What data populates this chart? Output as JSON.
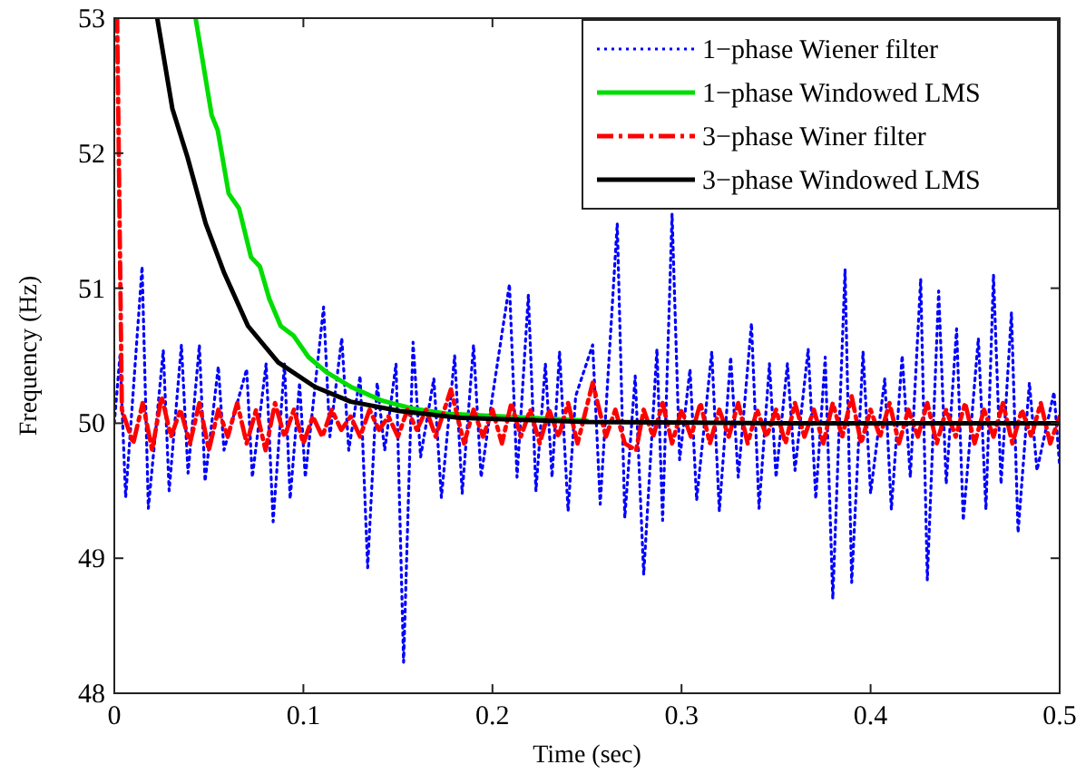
{
  "chart_data": {
    "type": "line",
    "xlabel": "Time (sec)",
    "ylabel": "Frequency (Hz)",
    "xlim": [
      0,
      0.5
    ],
    "ylim": [
      48,
      53
    ],
    "xticks": [
      0,
      0.1,
      0.2,
      0.3,
      0.4,
      0.5
    ],
    "yticks": [
      48,
      49,
      50,
      51,
      52,
      53
    ],
    "legend": "top right",
    "grid": false,
    "series": [
      {
        "name": "1−phase Wiener filter",
        "color": "#0000ff",
        "line_style": "dotted",
        "x": [
          0,
          0.003,
          0.006,
          0.0147,
          0.018,
          0.0259,
          0.029,
          0.0355,
          0.039,
          0.045,
          0.048,
          0.055,
          0.058,
          0.07,
          0.073,
          0.0803,
          0.084,
          0.09,
          0.093,
          0.098,
          0.101,
          0.1107,
          0.114,
          0.1203,
          0.124,
          0.13,
          0.134,
          0.139,
          0.143,
          0.149,
          0.153,
          0.158,
          0.162,
          0.169,
          0.173,
          0.18,
          0.184,
          0.19,
          0.194,
          0.2,
          0.209,
          0.213,
          0.219,
          0.223,
          0.228,
          0.2315,
          0.2355,
          0.24,
          0.244,
          0.253,
          0.257,
          0.266,
          0.27,
          0.2755,
          0.28,
          0.287,
          0.29,
          0.295,
          0.299,
          0.3045,
          0.308,
          0.316,
          0.32,
          0.326,
          0.33,
          0.337,
          0.341,
          0.3465,
          0.35,
          0.356,
          0.36,
          0.367,
          0.371,
          0.376,
          0.38,
          0.3865,
          0.39,
          0.396,
          0.4,
          0.4075,
          0.411,
          0.4167,
          0.421,
          0.4265,
          0.43,
          0.436,
          0.44,
          0.4455,
          0.449,
          0.457,
          0.461,
          0.465,
          0.469,
          0.4745,
          0.478,
          0.484,
          0.488,
          0.497,
          0.5
        ],
        "values": [
          50,
          50.5,
          49.45,
          51.16,
          49.37,
          50.54,
          49.5,
          50.58,
          49.63,
          50.58,
          49.57,
          50.42,
          49.8,
          50.4,
          49.6,
          50.44,
          49.27,
          50.44,
          49.44,
          50.3,
          49.6,
          50.86,
          49.9,
          50.63,
          49.8,
          50.35,
          48.93,
          50.3,
          49.8,
          50.44,
          48.23,
          50.6,
          49.75,
          50.33,
          49.45,
          50.5,
          49.48,
          50.58,
          49.6,
          50.2,
          51.03,
          49.6,
          50.95,
          49.5,
          50.44,
          49.6,
          50.53,
          49.35,
          50.2,
          50.58,
          49.4,
          51.48,
          49.3,
          50.35,
          48.88,
          50.55,
          49.28,
          51.55,
          49.73,
          50.4,
          49.43,
          50.53,
          49.35,
          50.49,
          49.6,
          50.74,
          49.37,
          50.44,
          49.6,
          50.44,
          49.65,
          50.55,
          49.44,
          50.49,
          48.7,
          51.14,
          48.82,
          50.53,
          49.48,
          50.33,
          49.36,
          50.5,
          49.6,
          51.07,
          48.84,
          50.98,
          49.55,
          50.7,
          49.28,
          50.63,
          49.36,
          51.1,
          49.55,
          50.82,
          49.19,
          50.3,
          49.65,
          50.23,
          49.68
        ]
      },
      {
        "name": "1−phase Windowed LMS",
        "color": "#00dd00",
        "line_style": "solid",
        "x": [
          0.043,
          0.0515,
          0.0547,
          0.0605,
          0.066,
          0.0723,
          0.077,
          0.082,
          0.088,
          0.0947,
          0.1027,
          0.112,
          0.125,
          0.141,
          0.157,
          0.176,
          0.25
        ],
        "values": [
          53,
          52.28,
          52.17,
          51.7,
          51.59,
          51.23,
          51.16,
          50.92,
          50.72,
          50.65,
          50.49,
          50.38,
          50.27,
          50.17,
          50.11,
          50.07,
          50.02
        ]
      },
      {
        "name": "3−phase Winer filter",
        "color": "#ff0000",
        "line_style": "dashdot",
        "x": [
          0,
          0.0015,
          0.004,
          0.01,
          0.015,
          0.02,
          0.025,
          0.03,
          0.035,
          0.04,
          0.045,
          0.05,
          0.055,
          0.06,
          0.065,
          0.07,
          0.075,
          0.08,
          0.085,
          0.09,
          0.095,
          0.1,
          0.105,
          0.11,
          0.115,
          0.12,
          0.125,
          0.13,
          0.135,
          0.14,
          0.145,
          0.15,
          0.155,
          0.16,
          0.165,
          0.17,
          0.178,
          0.185,
          0.19,
          0.195,
          0.2,
          0.205,
          0.21,
          0.215,
          0.22,
          0.225,
          0.23,
          0.235,
          0.24,
          0.245,
          0.253,
          0.26,
          0.265,
          0.27,
          0.276,
          0.28,
          0.285,
          0.29,
          0.295,
          0.3,
          0.305,
          0.31,
          0.315,
          0.32,
          0.325,
          0.33,
          0.335,
          0.34,
          0.345,
          0.35,
          0.355,
          0.36,
          0.365,
          0.37,
          0.375,
          0.38,
          0.385,
          0.39,
          0.395,
          0.4,
          0.405,
          0.41,
          0.415,
          0.42,
          0.425,
          0.43,
          0.435,
          0.44,
          0.445,
          0.45,
          0.455,
          0.46,
          0.465,
          0.47,
          0.475,
          0.48,
          0.485,
          0.49,
          0.495,
          0.5
        ],
        "values": [
          53,
          53,
          50.1,
          49.85,
          50.15,
          49.8,
          50.2,
          49.9,
          50.1,
          49.85,
          50.15,
          49.8,
          50.1,
          49.9,
          50.15,
          49.85,
          50.1,
          49.8,
          50.15,
          49.9,
          50.1,
          49.85,
          50.05,
          49.9,
          50.1,
          49.95,
          50.05,
          49.9,
          50.1,
          49.95,
          50.05,
          49.9,
          50.1,
          49.95,
          50.1,
          49.9,
          50.25,
          49.85,
          50.1,
          49.9,
          50.1,
          49.85,
          50.15,
          49.9,
          50.1,
          49.85,
          50.1,
          49.9,
          50.15,
          49.85,
          50.3,
          49.9,
          50.1,
          49.85,
          49.8,
          50.1,
          49.9,
          50.15,
          49.85,
          50.1,
          49.9,
          50.15,
          49.85,
          50.1,
          49.9,
          50.15,
          49.85,
          50.1,
          49.9,
          50.1,
          49.85,
          50.15,
          49.9,
          50.1,
          49.85,
          50.15,
          49.9,
          50.2,
          49.85,
          50.1,
          49.9,
          50.15,
          49.85,
          50.1,
          49.9,
          50.15,
          49.85,
          50.1,
          49.9,
          50.15,
          49.85,
          50.1,
          49.9,
          50.15,
          49.85,
          50.1,
          49.9,
          50.15,
          49.85,
          50.05
        ]
      },
      {
        "name": "3−phase Windowed LMS",
        "color": "#000000",
        "line_style": "solid",
        "x": [
          0.0227,
          0.0307,
          0.0387,
          0.0483,
          0.0579,
          0.0707,
          0.0867,
          0.106,
          0.125,
          0.151,
          0.183,
          0.25,
          0.35,
          0.5
        ],
        "values": [
          53,
          52.33,
          51.97,
          51.48,
          51.12,
          50.72,
          50.45,
          50.27,
          50.16,
          50.09,
          50.04,
          50.01,
          50,
          50
        ]
      }
    ]
  }
}
